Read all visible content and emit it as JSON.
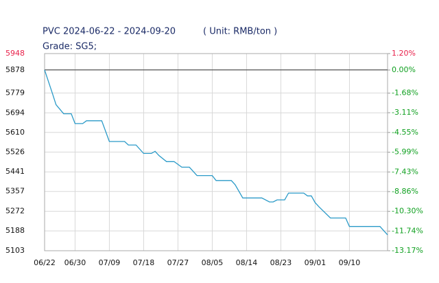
{
  "chart_data": {
    "type": "line",
    "title": "PVC 2024-06-22 - 2024-09-20",
    "unit": "( Unit: RMB/ton )",
    "subtitle": "Grade: SG5;",
    "year": 2024,
    "x": [
      "06/22",
      "06/24",
      "06/25",
      "06/27",
      "06/29",
      "06/30",
      "07/02",
      "07/03",
      "07/07",
      "07/09",
      "07/13",
      "07/14",
      "07/16",
      "07/18",
      "07/20",
      "07/21",
      "07/22",
      "07/24",
      "07/26",
      "07/28",
      "07/30",
      "08/01",
      "08/05",
      "08/06",
      "08/10",
      "08/11",
      "08/13",
      "08/18",
      "08/20",
      "08/21",
      "08/22",
      "08/24",
      "08/25",
      "08/29",
      "08/30",
      "08/31",
      "09/01",
      "09/02",
      "09/05",
      "09/09",
      "09/10",
      "09/18",
      "09/20"
    ],
    "series": [
      {
        "name": "PVC",
        "color": "#2a9ac8",
        "values": [
          5878,
          5780,
          5729,
          5690,
          5690,
          5648,
          5648,
          5660,
          5660,
          5571,
          5571,
          5556,
          5556,
          5520,
          5520,
          5529,
          5511,
          5485,
          5485,
          5461,
          5461,
          5425,
          5425,
          5404,
          5404,
          5386,
          5329,
          5329,
          5312,
          5312,
          5321,
          5321,
          5350,
          5350,
          5338,
          5338,
          5309,
          5291,
          5243,
          5243,
          5207,
          5207,
          5171
        ]
      }
    ],
    "xlim": [
      "06/22",
      "09/20"
    ],
    "xticks": [
      "06/22",
      "06/30",
      "07/09",
      "07/18",
      "07/27",
      "08/05",
      "08/14",
      "08/23",
      "09/01",
      "09/10"
    ],
    "ylim": [
      5103,
      5948
    ],
    "yticks": [
      5948,
      5878,
      5779,
      5694,
      5610,
      5526,
      5441,
      5357,
      5272,
      5188,
      5103
    ],
    "y2lim": [
      -13.17,
      1.2
    ],
    "y2ticks": [
      {
        "value": 1.2,
        "label": "1.20%"
      },
      {
        "value": 0,
        "label": "0.00%"
      },
      {
        "value": -1.68,
        "label": "-1.68%"
      },
      {
        "value": -3.11,
        "label": "-3.11%"
      },
      {
        "value": -4.55,
        "label": "-4.55%"
      },
      {
        "value": -5.99,
        "label": "-5.99%"
      },
      {
        "value": -7.43,
        "label": "-7.43%"
      },
      {
        "value": -8.86,
        "label": "-8.86%"
      },
      {
        "value": -10.3,
        "label": "-10.30%"
      },
      {
        "value": -11.74,
        "label": "-11.74%"
      },
      {
        "value": -13.17,
        "label": "-13.17%"
      }
    ],
    "baseline": 5878,
    "grid": true,
    "top_tick_color": "#e8204a",
    "y_tick_color": "#111111",
    "y2_tick_color": "#10a020"
  }
}
